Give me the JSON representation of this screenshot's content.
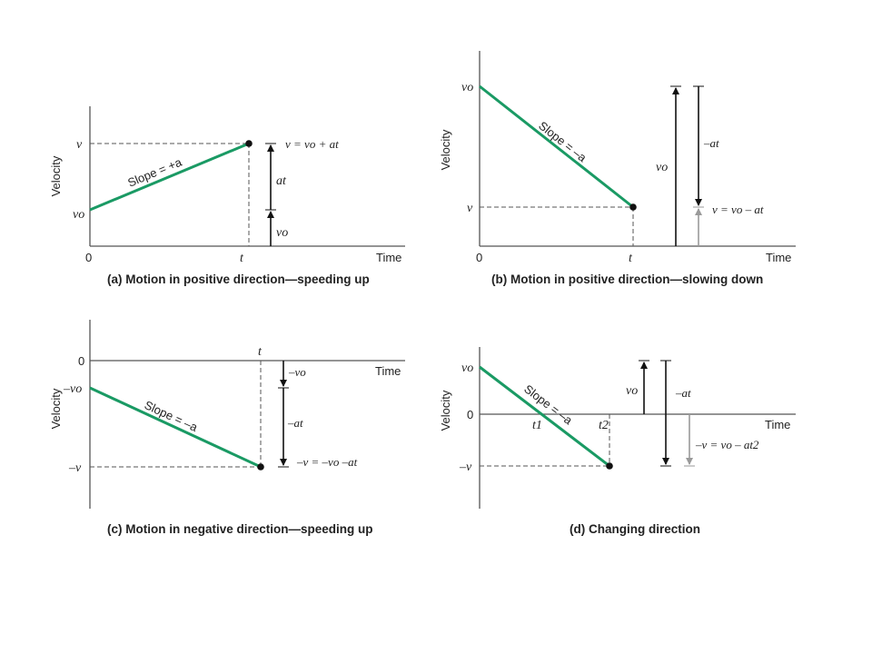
{
  "panels": {
    "a": {
      "caption": "(a) Motion in positive direction—speeding up",
      "ylabel": "Velocity",
      "xlabel": "Time",
      "origin": "0",
      "t": "t",
      "v": "v",
      "vo": "vo",
      "slope": "Slope = +a",
      "eq": "v = vo + at",
      "at": "at"
    },
    "b": {
      "caption": "(b) Motion in positive direction—slowing down",
      "ylabel": "Velocity",
      "xlabel": "Time",
      "origin": "0",
      "t": "t",
      "v": "v",
      "vo": "vo",
      "slope": "Slope = –a",
      "eq": "v = vo – at",
      "neg_at": "–at",
      "vo_arrow": "vo"
    },
    "c": {
      "caption": "(c) Motion in negative direction—speeding up",
      "ylabel": "Velocity",
      "xlabel": "Time",
      "zero": "0",
      "t": "t",
      "neg_vo": "–vo",
      "neg_v": "–v",
      "slope": "Slope = –a",
      "arrow_neg_vo": "–vo",
      "arrow_neg_at": "–at",
      "eq": "–v = –vo –at"
    },
    "d": {
      "caption": "(d) Changing direction",
      "ylabel": "Velocity",
      "xlabel": "Time",
      "zero": "0",
      "vo": "vo",
      "neg_v": "–v",
      "t1": "t1",
      "t2": "t2",
      "slope": "Slope = –a",
      "arrow_vo": "vo",
      "arrow_neg_at": "–at",
      "eq": "–v = vo – at2"
    }
  },
  "colors": {
    "line": "#1a9a64",
    "axis": "#555555",
    "arrow": "#111111",
    "arrow_gray": "#9a9a9a"
  }
}
